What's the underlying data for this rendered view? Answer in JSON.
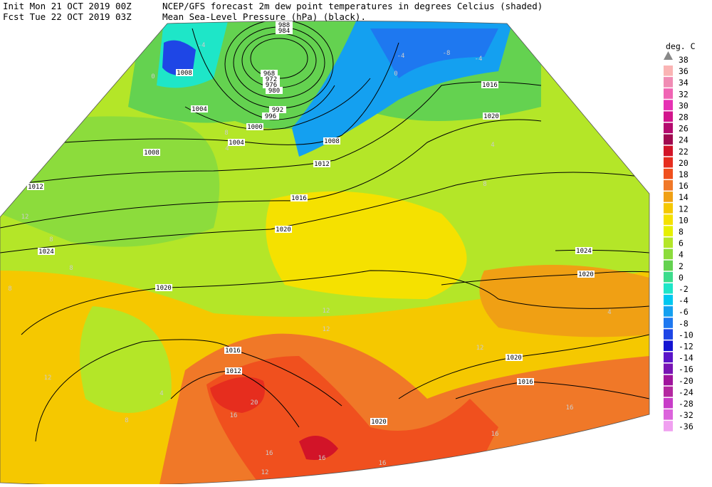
{
  "header": {
    "init": "Init  Mon 21 OCT 2019 00Z",
    "fcst": "Fcst Tue 22 OCT 2019 03Z",
    "title": "NCEP/GFS forecast 2m dew point temperatures in degrees Celcius (shaded)",
    "subtitle": "Mean Sea-Level Pressure (hPa) (black)."
  },
  "legend": {
    "unit": "deg. C",
    "levels": [
      38,
      36,
      34,
      32,
      30,
      28,
      26,
      24,
      22,
      20,
      18,
      16,
      14,
      12,
      10,
      8,
      6,
      4,
      2,
      0,
      -2,
      -4,
      -6,
      -8,
      -10,
      -12,
      -14,
      -16,
      -20,
      -24,
      -28,
      -32,
      -36
    ],
    "colors": [
      "#fab4b4",
      "#f08cb4",
      "#f064b4",
      "#e632b4",
      "#d2148c",
      "#b40a6e",
      "#a00a50",
      "#d21428",
      "#e62d1e",
      "#f0501e",
      "#f07828",
      "#f0a014",
      "#f5c800",
      "#f5e100",
      "#e6f000",
      "#b4e628",
      "#8cdc3c",
      "#64d250",
      "#3cdc8c",
      "#1ee6c8",
      "#00c8f0",
      "#14a0f0",
      "#1e78f0",
      "#1e46e6",
      "#1414d2",
      "#5a14c8",
      "#7814b4",
      "#a0149c",
      "#b428a0",
      "#c83cc8",
      "#dc64dc",
      "#f0a0f0"
    ],
    "marker_color": "#888888"
  },
  "map": {
    "isobar_labels": [
      988,
      984,
      1008,
      968,
      972,
      976,
      980,
      992,
      996,
      1004,
      1000,
      1004,
      1008,
      1012,
      1008,
      1012,
      1016,
      1020,
      1016,
      1020,
      1024,
      1020,
      1016,
      1012,
      1020,
      1024,
      1020,
      1020,
      1016
    ],
    "dewpoint_labels": [
      0,
      0,
      8,
      4,
      12,
      8,
      8,
      8,
      12,
      12,
      16,
      20,
      16,
      16,
      12,
      16,
      16,
      16,
      12,
      4,
      8,
      8,
      4,
      4,
      12,
      -4,
      -4,
      -8,
      -4
    ]
  }
}
